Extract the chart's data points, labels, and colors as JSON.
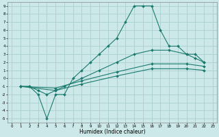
{
  "xlabel": "Humidex (Indice chaleur)",
  "bg_color": "#cce8e8",
  "grid_color": "#aad0d0",
  "line_color": "#1a7a6e",
  "xlim": [
    -0.5,
    23.5
  ],
  "ylim": [
    -5.5,
    9.5
  ],
  "xticks": [
    0,
    1,
    2,
    3,
    4,
    5,
    6,
    7,
    8,
    9,
    10,
    11,
    12,
    13,
    14,
    15,
    16,
    17,
    18,
    19,
    20,
    21,
    22,
    23
  ],
  "yticks": [
    -5,
    -4,
    -3,
    -2,
    -1,
    0,
    1,
    2,
    3,
    4,
    5,
    6,
    7,
    8,
    9
  ],
  "line1_x": [
    1,
    2,
    3,
    4,
    5,
    6,
    7,
    8,
    9,
    10,
    11,
    12,
    13,
    14,
    15,
    16,
    17,
    18,
    19,
    20,
    21,
    22
  ],
  "line1_y": [
    -1,
    -1,
    -2,
    -5,
    -2,
    -2,
    0,
    1,
    2,
    3,
    4,
    5,
    7,
    9,
    9,
    9,
    6,
    4,
    4,
    3,
    3,
    2
  ],
  "line2_x": [
    1,
    2,
    3,
    4,
    5,
    6,
    8,
    10,
    12,
    14,
    16,
    18,
    20,
    21,
    22
  ],
  "line2_y": [
    -1,
    -1,
    -1.5,
    -2,
    -1.5,
    -1,
    0,
    1,
    2,
    3,
    3.5,
    3.5,
    3,
    2.5,
    2
  ],
  "line3_x": [
    1,
    5,
    8,
    12,
    16,
    20,
    22
  ],
  "line3_y": [
    -1,
    -1.2,
    -0.3,
    0.8,
    1.8,
    1.8,
    1.5
  ],
  "line4_x": [
    1,
    5,
    8,
    12,
    16,
    20,
    22
  ],
  "line4_y": [
    -1,
    -1.5,
    -0.7,
    0.3,
    1.2,
    1.2,
    1.0
  ]
}
